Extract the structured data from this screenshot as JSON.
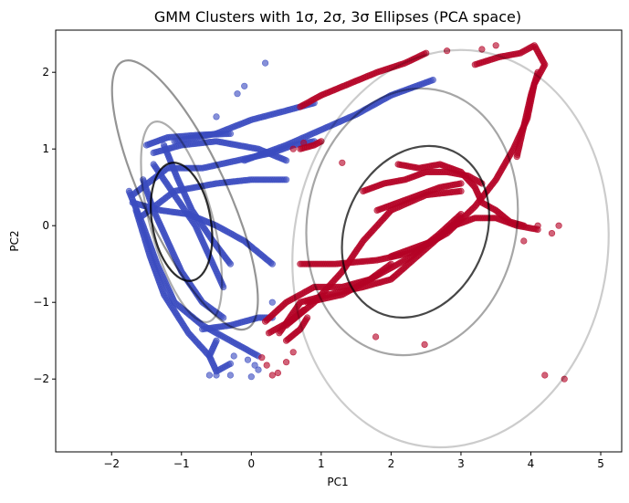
{
  "chart_data": {
    "type": "scatter",
    "title": "GMM Clusters with 1σ, 2σ, 3σ Ellipses (PCA space)",
    "xlabel": "PC1",
    "ylabel": "PC2",
    "xlim": [
      -2.8,
      5.3
    ],
    "ylim": [
      -2.95,
      2.55
    ],
    "xticks": [
      -2,
      -1,
      0,
      1,
      2,
      3,
      4,
      5
    ],
    "yticks": [
      -2,
      -1,
      0,
      1,
      2
    ],
    "grid": false,
    "legend": "none",
    "colors": {
      "cluster_blue": "#3b4cc0",
      "cluster_red": "#b40426",
      "ellipse": "#000000"
    },
    "series": [
      {
        "color": "#3b4cc0",
        "paths": [
          [
            [
              -1.7,
              0.4
            ],
            [
              -1.2,
              0.75
            ],
            [
              -0.7,
              0.75
            ],
            [
              -0.2,
              0.85
            ],
            [
              0.3,
              0.95
            ],
            [
              0.6,
              1.05
            ],
            [
              0.9,
              1.1
            ]
          ],
          [
            [
              -1.6,
              0.1
            ],
            [
              -1.1,
              0.45
            ],
            [
              -0.5,
              0.55
            ],
            [
              0.0,
              0.6
            ],
            [
              0.5,
              0.6
            ]
          ],
          [
            [
              -1.4,
              0.95
            ],
            [
              -1.0,
              1.05
            ],
            [
              -0.5,
              1.1
            ],
            [
              0.1,
              1.0
            ],
            [
              0.5,
              0.85
            ]
          ],
          [
            [
              -1.5,
              1.05
            ],
            [
              -1.2,
              1.15
            ],
            [
              -0.8,
              1.18
            ],
            [
              -0.3,
              1.2
            ]
          ],
          [
            [
              -1.1,
              1.1
            ],
            [
              -0.5,
              1.2
            ],
            [
              0.0,
              1.38
            ],
            [
              0.5,
              1.5
            ],
            [
              0.9,
              1.6
            ]
          ],
          [
            [
              -1.7,
              0.3
            ],
            [
              -1.3,
              0.2
            ],
            [
              -0.9,
              0.15
            ],
            [
              -0.5,
              0.0
            ],
            [
              -0.1,
              -0.2
            ],
            [
              0.3,
              -0.5
            ]
          ],
          [
            [
              -1.75,
              0.45
            ],
            [
              -1.55,
              0.0
            ],
            [
              -1.35,
              -0.5
            ],
            [
              -1.1,
              -1.0
            ],
            [
              -0.7,
              -1.3
            ],
            [
              -0.3,
              -1.5
            ],
            [
              0.1,
              -1.7
            ]
          ],
          [
            [
              -1.55,
              0.6
            ],
            [
              -1.4,
              0.2
            ],
            [
              -1.2,
              -0.2
            ],
            [
              -1.0,
              -0.6
            ],
            [
              -0.7,
              -1.0
            ],
            [
              -0.4,
              -1.2
            ]
          ],
          [
            [
              -1.4,
              0.8
            ],
            [
              -1.1,
              0.4
            ],
            [
              -0.8,
              0.0
            ],
            [
              -0.6,
              -0.4
            ],
            [
              -0.4,
              -0.8
            ]
          ],
          [
            [
              -1.65,
              0.2
            ],
            [
              -1.45,
              -0.4
            ],
            [
              -1.25,
              -0.9
            ],
            [
              -0.9,
              -1.4
            ],
            [
              -0.6,
              -1.7
            ]
          ],
          [
            [
              -1.25,
              1.05
            ],
            [
              -1.05,
              0.6
            ],
            [
              -0.85,
              0.2
            ],
            [
              -0.55,
              -0.2
            ],
            [
              -0.3,
              -0.5
            ]
          ],
          [
            [
              -0.7,
              -1.35
            ],
            [
              -0.3,
              -1.3
            ],
            [
              0.1,
              -1.2
            ],
            [
              0.3,
              -1.2
            ]
          ],
          [
            [
              -0.5,
              -1.5
            ],
            [
              -0.6,
              -1.7
            ],
            [
              -0.5,
              -1.9
            ],
            [
              -0.3,
              -1.8
            ]
          ],
          [
            [
              -0.1,
              0.85
            ],
            [
              0.5,
              1.05
            ],
            [
              1.0,
              1.25
            ],
            [
              1.5,
              1.45
            ],
            [
              2.0,
              1.7
            ],
            [
              2.6,
              1.9
            ]
          ]
        ],
        "points": [
          [
            0.2,
            2.12
          ],
          [
            -0.1,
            1.82
          ],
          [
            -0.2,
            1.72
          ],
          [
            -0.5,
            1.42
          ],
          [
            -0.5,
            -1.95
          ],
          [
            -0.6,
            -1.95
          ],
          [
            -0.3,
            -1.95
          ],
          [
            0.0,
            -1.97
          ],
          [
            0.3,
            -1.0
          ],
          [
            0.05,
            -1.82
          ],
          [
            0.1,
            -1.88
          ],
          [
            -0.25,
            -1.7
          ],
          [
            -0.05,
            -1.75
          ]
        ]
      },
      {
        "color": "#b40426",
        "paths": [
          [
            [
              0.7,
              -0.5
            ],
            [
              1.2,
              -0.5
            ],
            [
              1.8,
              -0.45
            ],
            [
              2.3,
              -0.35
            ],
            [
              2.8,
              -0.1
            ],
            [
              3.2,
              0.25
            ],
            [
              3.5,
              0.6
            ],
            [
              3.75,
              1.0
            ],
            [
              3.95,
              1.4
            ],
            [
              4.05,
              1.85
            ],
            [
              4.2,
              2.1
            ],
            [
              4.05,
              2.35
            ],
            [
              3.85,
              2.25
            ],
            [
              3.55,
              2.2
            ],
            [
              3.2,
              2.1
            ]
          ],
          [
            [
              0.8,
              -1.0
            ],
            [
              1.3,
              -0.9
            ],
            [
              1.8,
              -0.65
            ],
            [
              2.3,
              -0.4
            ],
            [
              2.7,
              -0.1
            ],
            [
              3.0,
              0.15
            ]
          ],
          [
            [
              0.4,
              -1.4
            ],
            [
              0.7,
              -1.0
            ],
            [
              1.1,
              -0.9
            ],
            [
              1.6,
              -0.8
            ],
            [
              2.0,
              -0.7
            ],
            [
              2.5,
              -0.3
            ],
            [
              3.0,
              0.1
            ]
          ],
          [
            [
              0.5,
              -1.3
            ],
            [
              0.9,
              -1.0
            ],
            [
              1.3,
              -0.6
            ],
            [
              1.6,
              -0.2
            ],
            [
              2.0,
              0.2
            ],
            [
              2.5,
              0.4
            ],
            [
              3.0,
              0.45
            ]
          ],
          [
            [
              0.2,
              -1.25
            ],
            [
              0.5,
              -1.0
            ],
            [
              0.9,
              -0.8
            ],
            [
              1.3,
              -0.8
            ],
            [
              1.7,
              -0.7
            ],
            [
              2.0,
              -0.5
            ]
          ],
          [
            [
              1.6,
              0.45
            ],
            [
              1.9,
              0.55
            ],
            [
              2.2,
              0.6
            ],
            [
              2.5,
              0.7
            ],
            [
              2.8,
              0.7
            ],
            [
              3.1,
              0.65
            ],
            [
              3.3,
              0.55
            ]
          ],
          [
            [
              2.1,
              0.8
            ],
            [
              2.4,
              0.75
            ],
            [
              2.7,
              0.8
            ],
            [
              3.0,
              0.7
            ],
            [
              3.2,
              0.5
            ],
            [
              3.3,
              0.3
            ],
            [
              3.5,
              0.2
            ],
            [
              3.7,
              0.05
            ],
            [
              3.9,
              0.0
            ]
          ],
          [
            [
              1.8,
              0.2
            ],
            [
              2.1,
              0.3
            ],
            [
              2.4,
              0.4
            ],
            [
              2.7,
              0.5
            ],
            [
              3.0,
              0.55
            ]
          ],
          [
            [
              2.0,
              -0.4
            ],
            [
              2.3,
              -0.3
            ],
            [
              2.6,
              -0.2
            ],
            [
              2.9,
              0.0
            ],
            [
              3.2,
              0.1
            ],
            [
              3.5,
              0.1
            ],
            [
              3.8,
              0.0
            ],
            [
              4.1,
              -0.05
            ]
          ],
          [
            [
              0.7,
              1.0
            ],
            [
              0.9,
              1.05
            ],
            [
              1.0,
              1.1
            ]
          ],
          [
            [
              0.7,
              1.55
            ],
            [
              1.0,
              1.7
            ],
            [
              1.4,
              1.85
            ],
            [
              1.8,
              2.0
            ],
            [
              2.2,
              2.12
            ],
            [
              2.5,
              2.25
            ]
          ],
          [
            [
              3.8,
              0.9
            ],
            [
              3.9,
              1.3
            ],
            [
              4.0,
              1.7
            ],
            [
              4.1,
              2.0
            ]
          ],
          [
            [
              0.25,
              -1.4
            ],
            [
              0.55,
              -1.25
            ],
            [
              0.75,
              -1.1
            ]
          ],
          [
            [
              0.5,
              -1.5
            ],
            [
              0.7,
              -1.35
            ],
            [
              0.8,
              -1.2
            ]
          ]
        ],
        "points": [
          [
            4.2,
            -1.95
          ],
          [
            4.48,
            -2.0
          ],
          [
            2.48,
            -1.55
          ],
          [
            1.78,
            -1.45
          ],
          [
            0.22,
            -1.82
          ],
          [
            0.3,
            -1.95
          ],
          [
            0.38,
            -1.92
          ],
          [
            0.5,
            -1.78
          ],
          [
            0.6,
            -1.65
          ],
          [
            0.15,
            -1.72
          ],
          [
            1.3,
            0.82
          ],
          [
            2.8,
            2.28
          ],
          [
            3.5,
            2.35
          ],
          [
            3.3,
            2.3
          ],
          [
            4.4,
            0.0
          ],
          [
            4.1,
            0.0
          ],
          [
            3.9,
            -0.2
          ],
          [
            0.6,
            1.0
          ],
          [
            0.75,
            1.08
          ],
          [
            4.3,
            -0.1
          ]
        ]
      }
    ],
    "ellipses": [
      {
        "cx": -0.95,
        "cy": 0.4,
        "rx": 0.6,
        "ry": 1.92,
        "tilt": -25,
        "opacity": 0.42
      },
      {
        "cx": -1.0,
        "cy": 0.05,
        "rx": 0.45,
        "ry": 1.35,
        "tilt": -15,
        "opacity": 0.32
      },
      {
        "cx": -1.0,
        "cy": 0.05,
        "rx": 0.42,
        "ry": 0.78,
        "tilt": -10,
        "opacity": 0.82
      },
      {
        "cx": 2.3,
        "cy": 0.05,
        "rx": 1.5,
        "ry": 1.75,
        "tilt": 10,
        "opacity": 0.35
      },
      {
        "cx": 2.35,
        "cy": -0.08,
        "rx": 1.0,
        "ry": 1.16,
        "tilt": 25,
        "opacity": 0.72
      },
      {
        "cx": 2.85,
        "cy": -0.3,
        "rx": 2.25,
        "ry": 2.6,
        "tilt": 8,
        "opacity": 0.2
      }
    ]
  }
}
